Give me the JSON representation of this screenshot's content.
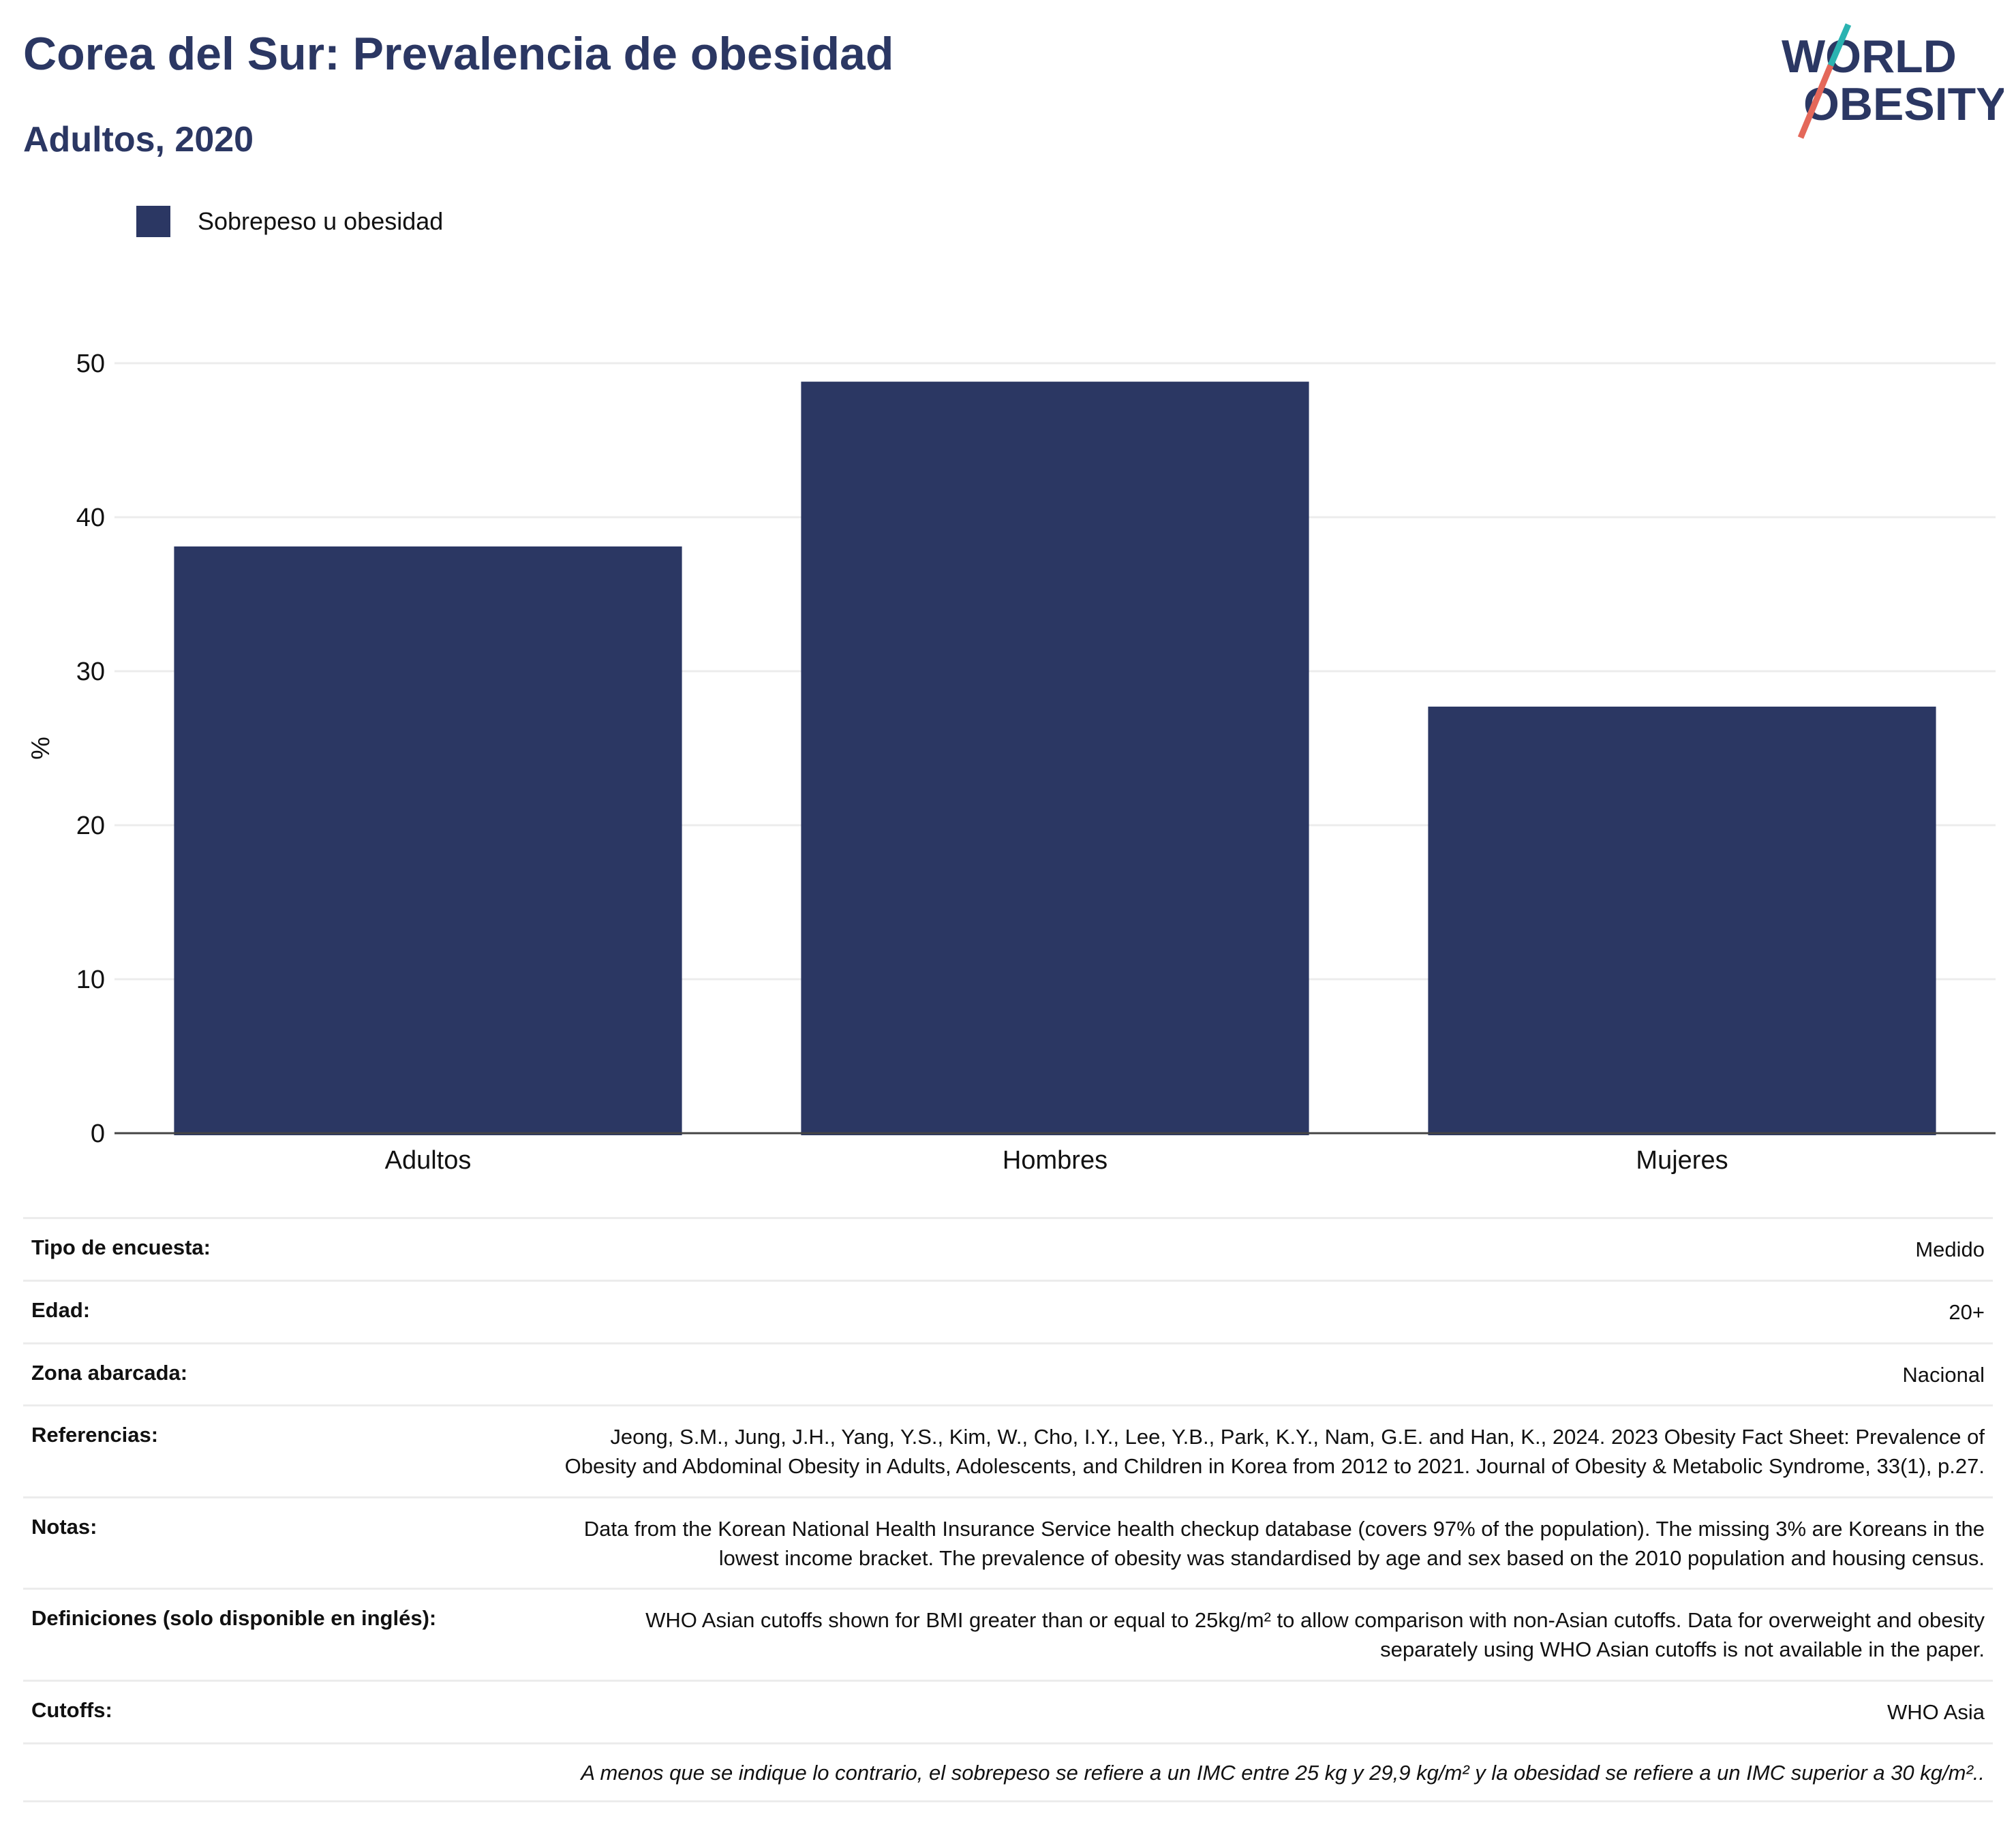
{
  "header": {
    "title": "Corea del Sur: Prevalencia de obesidad",
    "subtitle": "Adultos, 2020",
    "logo_line1": "WORLD",
    "logo_line2": "OBESITY"
  },
  "colors": {
    "bar": "#2b3763",
    "title": "#2b3763",
    "logo_teal": "#2bb3b1",
    "logo_coral": "#e4685a",
    "grid": "#ececec"
  },
  "legend": {
    "label": "Sobrepeso u obesidad"
  },
  "chart_data": {
    "type": "bar",
    "categories": [
      "Adultos",
      "Hombres",
      "Mujeres"
    ],
    "series": [
      {
        "name": "Sobrepeso u obesidad",
        "values": [
          38.1,
          48.8,
          27.7
        ]
      }
    ],
    "ylabel": "%",
    "xlabel": "",
    "ylim": [
      0,
      50
    ],
    "yticks": [
      0,
      10,
      20,
      30,
      40,
      50
    ],
    "grid": true,
    "legend_position": "top-left"
  },
  "info": {
    "rows": [
      {
        "label": "Tipo de encuesta:",
        "value": "Medido"
      },
      {
        "label": "Edad:",
        "value": "20+"
      },
      {
        "label": "Zona abarcada:",
        "value": "Nacional"
      },
      {
        "label": "Referencias:",
        "value": "Jeong, S.M., Jung, J.H., Yang, Y.S., Kim, W., Cho, I.Y., Lee, Y.B., Park, K.Y., Nam, G.E. and Han, K., 2024. 2023 Obesity Fact Sheet: Prevalence of Obesity and Abdominal Obesity in Adults, Adolescents, and Children in Korea from 2012 to 2021. Journal of Obesity & Metabolic Syndrome, 33(1), p.27."
      },
      {
        "label": "Notas:",
        "value": "Data from the Korean National Health Insurance Service health checkup database (covers 97% of the population). The missing 3% are Koreans in the lowest income bracket. The prevalence of obesity was standardised by age and sex based on the 2010 population and housing census."
      },
      {
        "label": "Definiciones (solo disponible en inglés):",
        "value": "WHO Asian cutoffs shown for BMI greater than or equal to 25kg/m² to allow comparison with non-Asian cutoffs. Data for overweight and obesity separately using WHO Asian cutoffs is not available in the paper."
      },
      {
        "label": "Cutoffs:",
        "value": "WHO Asia"
      }
    ],
    "footnote": "A menos que se indique lo contrario, el sobrepeso se refiere a un IMC entre 25 kg y 29,9 kg/m² y la obesidad se refiere a un IMC superior a 30 kg/m².."
  }
}
